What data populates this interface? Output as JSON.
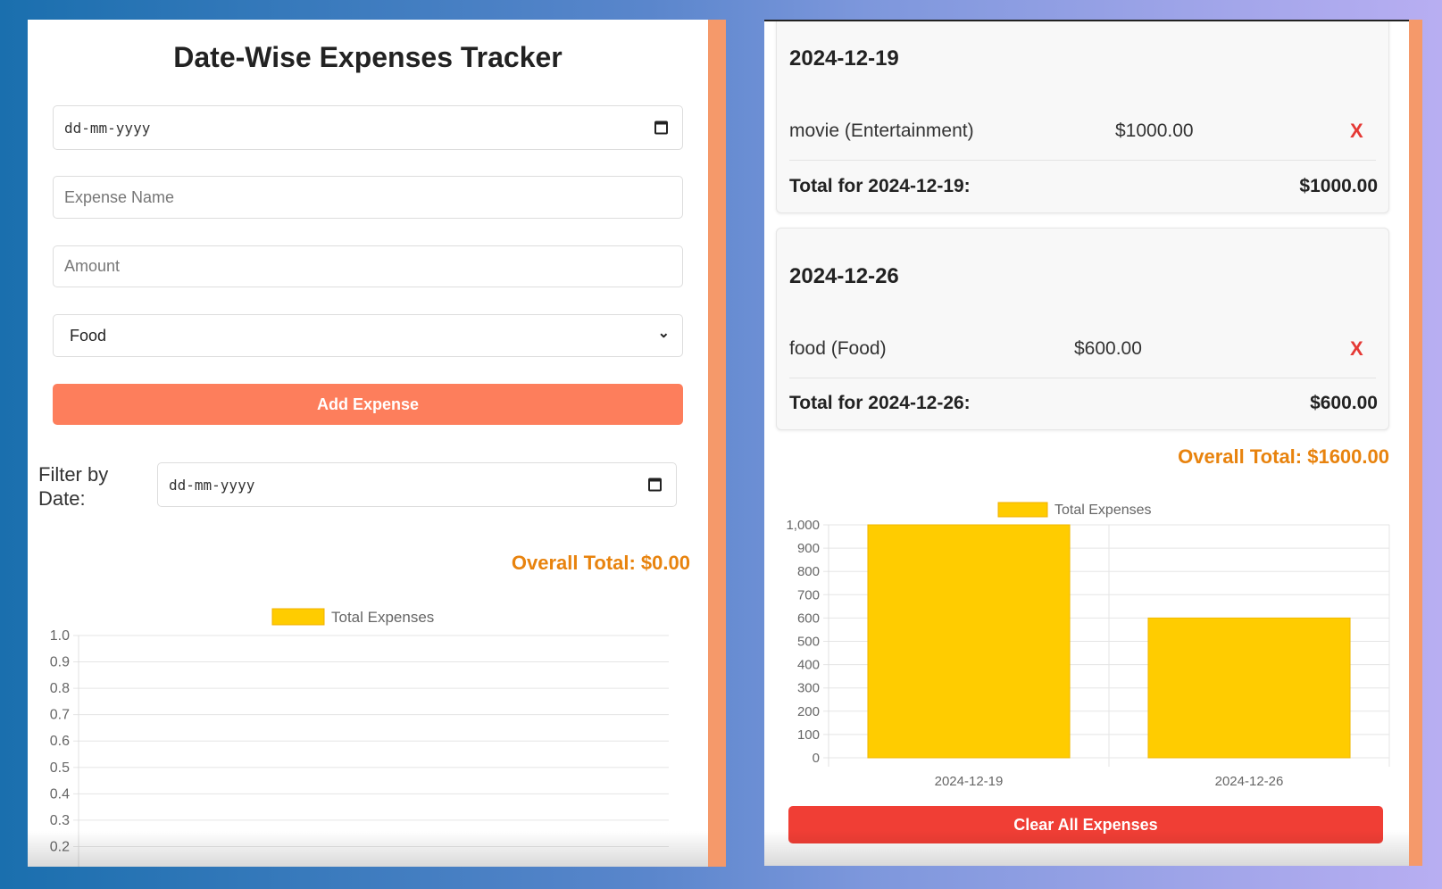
{
  "left": {
    "title": "Date-Wise Expenses Tracker",
    "date_placeholder": "dd-mm-yyyy",
    "expense_name_placeholder": "Expense Name",
    "amount_placeholder": "Amount",
    "category_selected": "Food",
    "add_button": "Add Expense",
    "filter_label": "Filter by Date:",
    "filter_placeholder": "dd-mm-yyyy",
    "overall_total": "Overall Total: $0.00"
  },
  "right": {
    "groups": [
      {
        "date": "2024-12-19",
        "item": "movie (Entertainment)",
        "amount": "$1000.00",
        "delete": "X",
        "total_label": "Total for 2024-12-19:",
        "total": "$1000.00"
      },
      {
        "date": "2024-12-26",
        "item": "food (Food)",
        "amount": "$600.00",
        "delete": "X",
        "total_label": "Total for 2024-12-26:",
        "total": "$600.00"
      }
    ],
    "overall_total": "Overall Total: $1600.00",
    "clear_button": "Clear All Expenses"
  },
  "colors": {
    "accent": "#fd7e5c",
    "danger": "#f03e35",
    "total": "#e8830e",
    "bar": "#ffcc00"
  },
  "chart_data": [
    {
      "type": "bar",
      "legend": [
        "Total Expenses"
      ],
      "categories": [],
      "values": [],
      "yticks": [
        "0.2",
        "0.3",
        "0.4",
        "0.5",
        "0.6",
        "0.7",
        "0.8",
        "0.9",
        "1.0"
      ],
      "ylim": [
        0,
        1
      ],
      "grid": true,
      "legend_position": "top"
    },
    {
      "type": "bar",
      "legend": [
        "Total Expenses"
      ],
      "categories": [
        "2024-12-19",
        "2024-12-26"
      ],
      "values": [
        1000,
        600
      ],
      "yticks": [
        "0",
        "100",
        "200",
        "300",
        "400",
        "500",
        "600",
        "700",
        "800",
        "900",
        "1,000"
      ],
      "ylim": [
        0,
        1000
      ],
      "grid": true,
      "legend_position": "top"
    }
  ]
}
